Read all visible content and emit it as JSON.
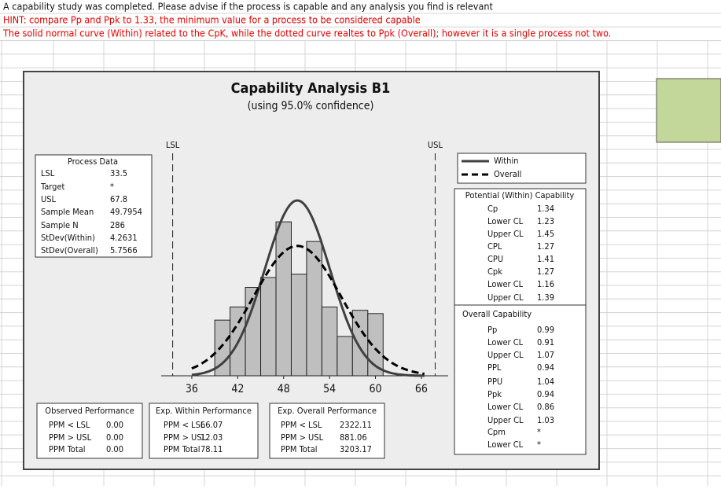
{
  "notes": [
    "A capability study was completed. Please advise if the process is capable and any analysis you find is relevant",
    "HINT: compare Pp and Ppk to 1.33, the minimum value for a process to be considered capable",
    "The solid normal curve (Within) related to the CpK, while the dotted curve realtes to Ppk (Overall); however it is a single process not two."
  ],
  "chart_data": {
    "type": "histogram",
    "title": "Capability Analysis B1",
    "subtitle": "(using 95.0% confidence)",
    "bins": [
      39,
      41,
      43,
      45,
      47,
      49,
      51,
      53,
      55,
      57,
      59,
      61
    ],
    "values": [
      17,
      21,
      27,
      30,
      47,
      31,
      41,
      21,
      12,
      20,
      19
    ],
    "color": "#bfbfbf",
    "xlim": [
      32,
      69.5
    ],
    "xticks": [
      36,
      42,
      48,
      54,
      60,
      66
    ],
    "ylim": [
      0,
      60
    ],
    "spec_labels": [
      "LSL",
      "USL"
    ],
    "series": [
      {
        "name": "Within",
        "color": "#404040",
        "dash": "solid"
      },
      {
        "name": "Overall",
        "color": "#000000",
        "dash": "dashed"
      }
    ]
  },
  "process_data": {
    "title": "Process Data",
    "rows": [
      [
        "LSL",
        "33.5"
      ],
      [
        "Target",
        "*"
      ],
      [
        "USL",
        "67.8"
      ],
      [
        "Sample Mean",
        "49.7954"
      ],
      [
        "Sample N",
        "286"
      ],
      [
        "StDev(Within)",
        "4.2631"
      ],
      [
        "StDev(Overall)",
        "5.7566"
      ]
    ]
  },
  "potential_capability": {
    "title": "Potential (Within) Capability",
    "rows": [
      [
        "Cp",
        "1.34"
      ],
      [
        "Lower CL",
        "1.23"
      ],
      [
        "Upper CL",
        "1.45"
      ],
      [
        "CPL",
        "1.27"
      ],
      [
        "CPU",
        "1.41"
      ],
      [
        "Cpk",
        "1.27"
      ],
      [
        "Lower CL",
        "1.16"
      ],
      [
        "Upper CL",
        "1.39"
      ]
    ]
  },
  "overall_capability": {
    "title": "Overall Capability",
    "rows": [
      [
        "Pp",
        "0.99"
      ],
      [
        "Lower CL",
        "0.91"
      ],
      [
        "Upper CL",
        "1.07"
      ],
      [
        "PPL",
        "0.94"
      ],
      [
        "PPU",
        "1.04"
      ],
      [
        "Ppk",
        "0.94"
      ],
      [
        "Lower CL",
        "0.86"
      ],
      [
        "Upper CL",
        "1.03"
      ],
      [
        "Cpm",
        "*"
      ],
      [
        "Lower CL",
        "*"
      ]
    ]
  },
  "observed_performance": {
    "title": "Observed Performance",
    "rows": [
      [
        "PPM < LSL",
        "0.00"
      ],
      [
        "PPM > USL",
        "0.00"
      ],
      [
        "PPM Total",
        "0.00"
      ]
    ]
  },
  "within_performance": {
    "title": "Exp. Within Performance",
    "rows": [
      [
        "PPM < LSL",
        "66.07"
      ],
      [
        "PPM > USL",
        "12.03"
      ],
      [
        "PPM Total",
        "78.11"
      ]
    ]
  },
  "overall_performance": {
    "title": "Exp. Overall Performance",
    "rows": [
      [
        "PPM < LSL",
        "2322.11"
      ],
      [
        "PPM > USL",
        "881.06"
      ],
      [
        "PPM Total",
        "3203.17"
      ]
    ]
  }
}
